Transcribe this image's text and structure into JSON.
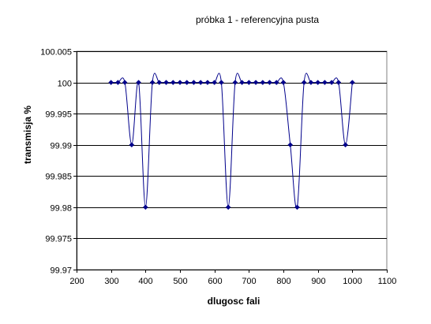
{
  "chart_data": {
    "type": "line",
    "title": "próbka 1 - referencyjna pusta",
    "xlabel": "dlugosc fali",
    "ylabel": "transmisja %",
    "xlim": [
      200,
      1100
    ],
    "ylim": [
      99.97,
      100.005
    ],
    "xticks": [
      "200",
      "300",
      "400",
      "500",
      "600",
      "700",
      "800",
      "900",
      "1000",
      "1100"
    ],
    "yticks": [
      "99.97",
      "99.975",
      "99.98",
      "99.985",
      "99.99",
      "99.995",
      "100",
      "100.005"
    ],
    "grid": "horizontal",
    "legend": "none",
    "line_color": "#00008b",
    "marker_color": "#00008b",
    "series": [
      {
        "x": [
          300,
          320,
          340,
          360,
          380,
          400,
          420,
          440,
          460,
          480,
          500,
          520,
          540,
          560,
          580,
          600,
          620,
          640,
          660,
          680,
          700,
          720,
          740,
          760,
          780,
          800,
          820,
          840,
          860,
          880,
          900,
          920,
          940,
          960,
          980,
          1000
        ],
        "values": [
          100,
          100,
          100,
          99.99,
          100,
          99.98,
          100,
          100,
          100,
          100,
          100,
          100,
          100,
          100,
          100,
          100,
          100,
          99.98,
          100,
          100,
          100,
          100,
          100,
          100,
          100,
          100,
          99.99,
          99.98,
          100,
          100,
          100,
          100,
          100,
          100,
          99.99,
          100
        ]
      }
    ]
  }
}
